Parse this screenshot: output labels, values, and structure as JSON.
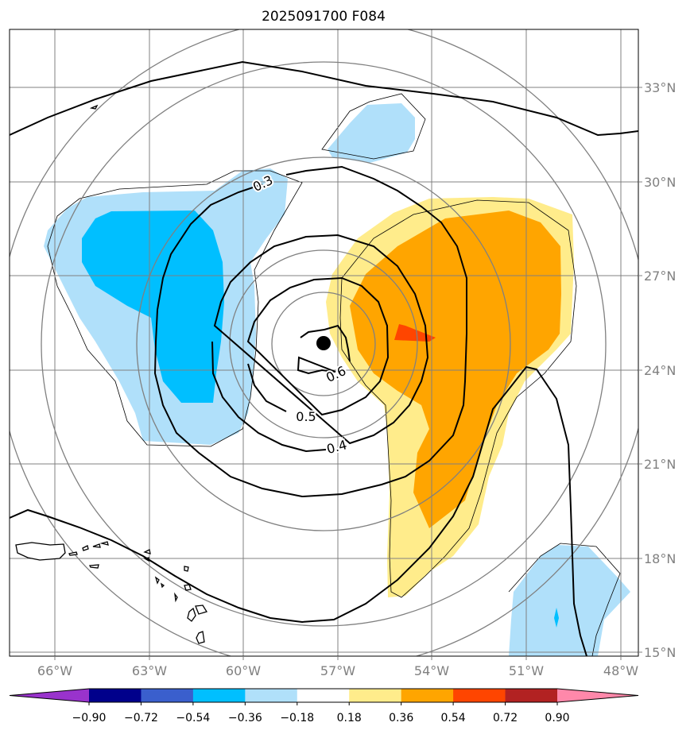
{
  "title": "2025091700 F084",
  "map": {
    "lon_labels": [
      "66°W",
      "63°W",
      "60°W",
      "57°W",
      "54°W",
      "51°W",
      "48°W"
    ],
    "lat_labels": [
      "33°N",
      "30°N",
      "27°N",
      "24°N",
      "21°N",
      "18°N",
      "15°N"
    ],
    "contour_labels": [
      "0.3",
      "0.6",
      "0.5",
      "0.4"
    ],
    "storm_center": {
      "lon": -57.45,
      "lat": 24.9
    }
  },
  "colorbar": {
    "ticks": [
      "−0.90",
      "−0.72",
      "−0.54",
      "−0.36",
      "−0.18",
      "0.18",
      "0.36",
      "0.54",
      "0.72",
      "0.90"
    ],
    "colors": [
      "#9933cc",
      "#00008b",
      "#3a5fcd",
      "#00bfff",
      "#b0e0fa",
      "#ffffff",
      "#ffec8b",
      "#ffa500",
      "#ff4500",
      "#b22222",
      "#ff88aa"
    ]
  },
  "colors": {
    "light_blue": "#b0e0fa",
    "blue": "#00bfff",
    "light_yellow": "#ffec8b",
    "orange": "#ffa500",
    "red": "#ff4500",
    "grid": "#808080"
  }
}
